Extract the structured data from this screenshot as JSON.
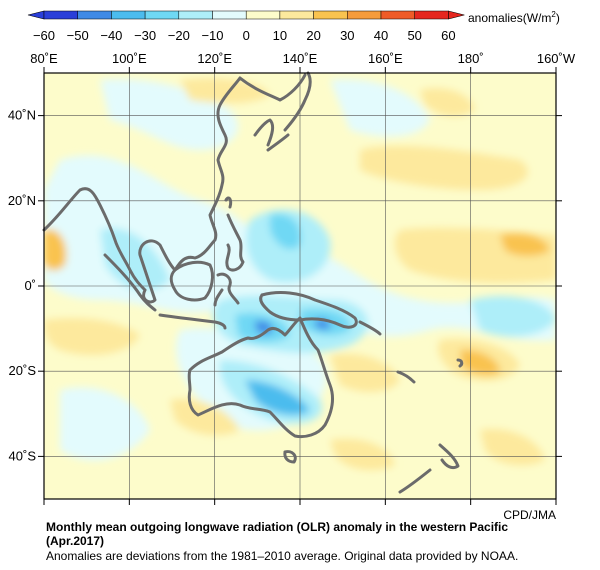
{
  "colorbar": {
    "ticks": [
      "−60",
      "−50",
      "−40",
      "−30",
      "−20",
      "−10",
      "0",
      "10",
      "20",
      "30",
      "40",
      "50",
      "60"
    ],
    "unit": "anomalies(W/m",
    "unit_sup": "2",
    "unit_close": ")",
    "colors": [
      "#2a3fd9",
      "#3f8ae6",
      "#4cbcee",
      "#6fd8f4",
      "#aeeef9",
      "#e3fbfd",
      "#fdfccb",
      "#fde99d",
      "#f9c34f",
      "#f59b3b",
      "#ef5b27",
      "#e5261e"
    ]
  },
  "map": {
    "lon_labels": [
      "80˚E",
      "100˚E",
      "120˚E",
      "140˚E",
      "160˚E",
      "180˚",
      "160˚W"
    ],
    "lat_labels": [
      "40˚N",
      "20˚N",
      "0˚",
      "20˚S",
      "40˚S"
    ],
    "coastline_color": "#6b6b6b"
  },
  "footer": {
    "credit": "CPD/JMA",
    "title_line1": "Monthly mean outgoing longwave radiation (OLR) anomaly in the western Pacific",
    "title_line2": "(Apr.2017)",
    "note": "Anomalies are deviations from the 1981–2010 average. Original data provided by NOAA."
  }
}
